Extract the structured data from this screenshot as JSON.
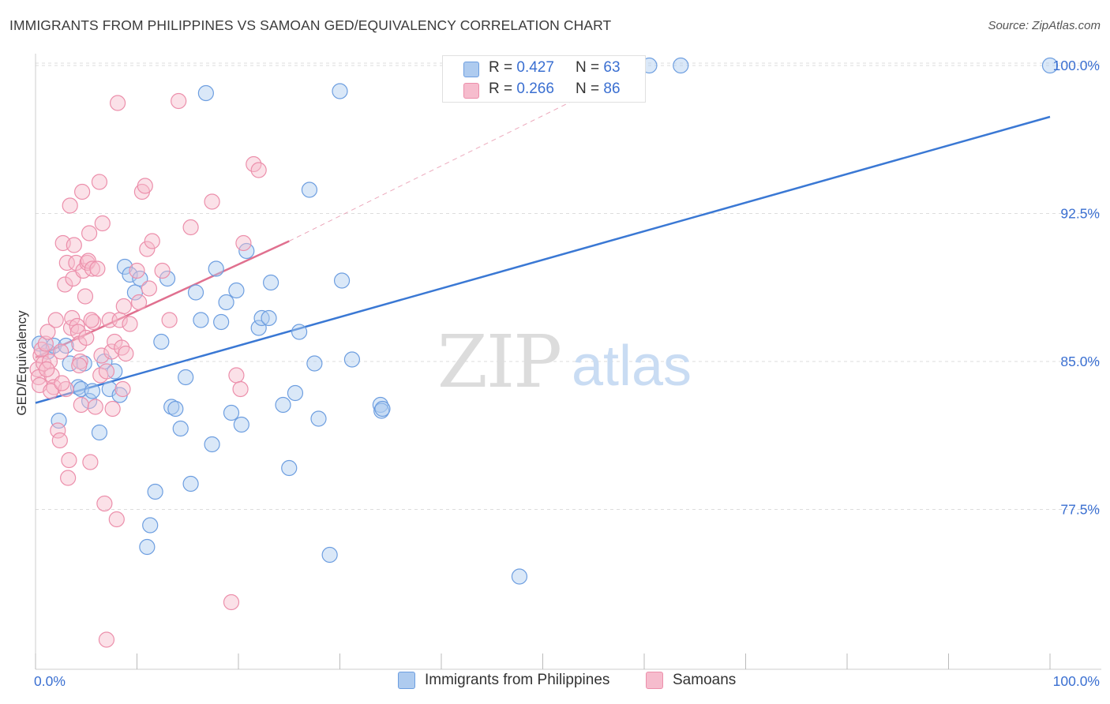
{
  "header": {
    "title": "IMMIGRANTS FROM PHILIPPINES VS SAMOAN GED/EQUIVALENCY CORRELATION CHART",
    "source": "Source: ZipAtlas.com"
  },
  "watermark": {
    "zip": "ZIP",
    "atlas": "atlas"
  },
  "legend": {
    "r_label": "R = ",
    "n_label": "N = ",
    "series": [
      {
        "r": "0.427",
        "n": "63"
      },
      {
        "r": "0.266",
        "n": "86"
      }
    ]
  },
  "colors": {
    "blue_fill": "#aecbef",
    "blue_stroke": "#6d9ee0",
    "blue_line": "#3a78d4",
    "pink_fill": "#f6bccd",
    "pink_stroke": "#ec8fab",
    "pink_line": "#e0708f",
    "axis_text": "#3a6fd1",
    "grid": "#dddddd"
  },
  "chart_data": {
    "type": "scatter",
    "xlabel": "",
    "ylabel": "GED/Equivalency",
    "xlim": [
      0,
      100
    ],
    "ylim": [
      69.4,
      100.6
    ],
    "x_tick_labels": [
      "0.0%",
      "100.0%"
    ],
    "y_ticks": [
      77.5,
      85.0,
      92.5,
      100.0
    ],
    "y_tick_labels": [
      "77.5%",
      "85.0%",
      "92.5%",
      "100.0%"
    ],
    "grid": "horizontal dashed",
    "legend_position": "top-center",
    "series": [
      {
        "name": "Immigrants from Philippines",
        "color": "blue",
        "trend": {
          "x": [
            0,
            100
          ],
          "y": [
            82.9,
            97.4
          ],
          "dashed_extension": false
        },
        "points": [
          [
            0.4,
            85.9
          ],
          [
            1.2,
            85.5
          ],
          [
            1.8,
            85.8
          ],
          [
            2.3,
            82.0
          ],
          [
            3.0,
            85.8
          ],
          [
            3.4,
            84.9
          ],
          [
            4.2,
            83.7
          ],
          [
            4.5,
            83.6
          ],
          [
            4.8,
            84.9
          ],
          [
            5.3,
            83.0
          ],
          [
            5.6,
            83.5
          ],
          [
            6.3,
            81.4
          ],
          [
            6.8,
            85.0
          ],
          [
            7.3,
            83.6
          ],
          [
            7.8,
            84.5
          ],
          [
            8.3,
            83.3
          ],
          [
            8.8,
            89.8
          ],
          [
            9.3,
            89.4
          ],
          [
            9.8,
            88.5
          ],
          [
            10.3,
            89.2
          ],
          [
            11.0,
            75.6
          ],
          [
            11.3,
            76.7
          ],
          [
            11.8,
            78.4
          ],
          [
            12.4,
            86.0
          ],
          [
            13.0,
            89.2
          ],
          [
            13.4,
            82.7
          ],
          [
            13.8,
            82.6
          ],
          [
            14.3,
            81.6
          ],
          [
            14.8,
            84.2
          ],
          [
            15.3,
            78.8
          ],
          [
            15.8,
            88.5
          ],
          [
            16.3,
            87.1
          ],
          [
            16.8,
            98.6
          ],
          [
            17.4,
            80.8
          ],
          [
            17.8,
            89.7
          ],
          [
            18.3,
            87.0
          ],
          [
            18.8,
            88.0
          ],
          [
            19.3,
            82.4
          ],
          [
            19.8,
            88.6
          ],
          [
            20.3,
            81.8
          ],
          [
            20.8,
            90.6
          ],
          [
            22.0,
            86.7
          ],
          [
            22.3,
            87.2
          ],
          [
            23.0,
            87.2
          ],
          [
            23.2,
            89.0
          ],
          [
            24.4,
            82.8
          ],
          [
            25.0,
            79.6
          ],
          [
            25.6,
            83.4
          ],
          [
            26.0,
            86.5
          ],
          [
            27.0,
            93.7
          ],
          [
            27.5,
            84.9
          ],
          [
            27.9,
            82.1
          ],
          [
            29.0,
            75.2
          ],
          [
            30.0,
            98.7
          ],
          [
            30.2,
            89.1
          ],
          [
            31.2,
            85.1
          ],
          [
            34.0,
            82.8
          ],
          [
            34.1,
            82.5
          ],
          [
            47.7,
            74.1
          ],
          [
            60.5,
            100.0
          ],
          [
            63.6,
            100.0
          ],
          [
            100.0,
            100.0
          ],
          [
            34.2,
            82.6
          ]
        ]
      },
      {
        "name": "Samoans",
        "color": "pink",
        "trend": {
          "x": [
            0,
            25,
            60
          ],
          "y": [
            85.2,
            91.1,
            100.0
          ],
          "dashed_extension": true
        },
        "points": [
          [
            0.2,
            84.6
          ],
          [
            0.3,
            84.2
          ],
          [
            0.4,
            83.8
          ],
          [
            0.5,
            85.3
          ],
          [
            0.6,
            85.6
          ],
          [
            0.8,
            84.9
          ],
          [
            1.0,
            85.9
          ],
          [
            1.2,
            86.5
          ],
          [
            1.4,
            85.0
          ],
          [
            1.6,
            84.3
          ],
          [
            1.8,
            83.7
          ],
          [
            2.0,
            87.1
          ],
          [
            2.2,
            81.5
          ],
          [
            2.4,
            81.0
          ],
          [
            2.5,
            85.5
          ],
          [
            2.7,
            91.0
          ],
          [
            2.9,
            88.9
          ],
          [
            3.0,
            83.6
          ],
          [
            3.1,
            90.0
          ],
          [
            3.2,
            79.1
          ],
          [
            3.3,
            80.0
          ],
          [
            3.4,
            92.9
          ],
          [
            3.5,
            86.7
          ],
          [
            3.6,
            87.2
          ],
          [
            3.7,
            89.2
          ],
          [
            3.8,
            90.9
          ],
          [
            4.0,
            90.0
          ],
          [
            4.1,
            86.8
          ],
          [
            4.2,
            86.5
          ],
          [
            4.3,
            85.9
          ],
          [
            4.4,
            85.0
          ],
          [
            4.5,
            82.8
          ],
          [
            4.6,
            93.6
          ],
          [
            4.7,
            89.6
          ],
          [
            4.9,
            88.3
          ],
          [
            5.0,
            86.2
          ],
          [
            5.1,
            90.0
          ],
          [
            5.2,
            90.1
          ],
          [
            5.3,
            91.5
          ],
          [
            5.4,
            79.9
          ],
          [
            5.6,
            89.7
          ],
          [
            5.7,
            87.0
          ],
          [
            5.9,
            82.7
          ],
          [
            6.1,
            89.7
          ],
          [
            6.3,
            94.1
          ],
          [
            6.4,
            84.3
          ],
          [
            6.5,
            85.3
          ],
          [
            6.6,
            92.0
          ],
          [
            6.8,
            77.8
          ],
          [
            7.0,
            84.5
          ],
          [
            7.3,
            87.1
          ],
          [
            7.5,
            85.5
          ],
          [
            7.6,
            82.6
          ],
          [
            7.8,
            86.0
          ],
          [
            8.0,
            77.0
          ],
          [
            8.1,
            98.1
          ],
          [
            8.3,
            87.1
          ],
          [
            8.5,
            85.7
          ],
          [
            8.6,
            83.6
          ],
          [
            8.7,
            87.8
          ],
          [
            8.9,
            85.4
          ],
          [
            9.3,
            86.9
          ],
          [
            10.0,
            89.6
          ],
          [
            10.2,
            88.0
          ],
          [
            10.5,
            93.6
          ],
          [
            10.8,
            93.9
          ],
          [
            11.0,
            90.7
          ],
          [
            11.2,
            88.7
          ],
          [
            11.5,
            91.1
          ],
          [
            12.5,
            89.6
          ],
          [
            13.2,
            87.1
          ],
          [
            14.1,
            98.2
          ],
          [
            15.3,
            91.8
          ],
          [
            17.4,
            93.1
          ],
          [
            19.3,
            72.8
          ],
          [
            19.8,
            84.3
          ],
          [
            20.2,
            83.6
          ],
          [
            20.5,
            91.0
          ],
          [
            21.5,
            95.0
          ],
          [
            22.0,
            94.7
          ],
          [
            7.0,
            70.9
          ],
          [
            1.5,
            83.5
          ],
          [
            2.6,
            83.9
          ],
          [
            4.3,
            84.8
          ],
          [
            5.5,
            87.1
          ],
          [
            1.1,
            84.6
          ]
        ]
      }
    ]
  }
}
